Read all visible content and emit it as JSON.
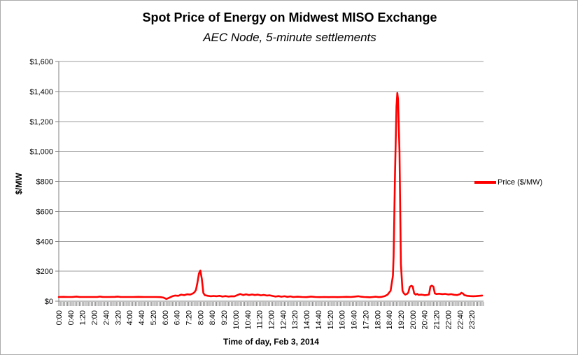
{
  "title": "Spot Price of Energy on Midwest MISO Exchange",
  "subtitle": "AEC Node, 5-minute settlements",
  "legend": {
    "label": "Price ($/MW)",
    "line_color": "#ff0000"
  },
  "colors": {
    "series": "#ff0000",
    "gridline": "#9c9c9c",
    "axis": "#808080",
    "text": "#000000",
    "background": "#ffffff"
  },
  "y_axis": {
    "title": "$/MW",
    "min": 0,
    "max": 1600,
    "step": 200,
    "tick_labels": [
      "$0",
      "$200",
      "$400",
      "$600",
      "$800",
      "$1,000",
      "$1,200",
      "$1,400",
      "$1,600"
    ]
  },
  "x_axis": {
    "title": "Time of day, Feb 3, 2014",
    "minor_tick_minutes": 5,
    "label_interval_minutes": 40,
    "tick_labels": [
      "0:00",
      "0:40",
      "1:20",
      "2:00",
      "2:40",
      "3:20",
      "4:00",
      "4:40",
      "5:20",
      "6:00",
      "6:40",
      "7:20",
      "8:00",
      "8:40",
      "9:20",
      "10:00",
      "10:40",
      "11:20",
      "12:00",
      "12:40",
      "13:20",
      "14:00",
      "14:40",
      "15:20",
      "16:00",
      "16:40",
      "17:20",
      "18:00",
      "18:40",
      "19:20",
      "20:00",
      "20:40",
      "21:20",
      "22:00",
      "22:40",
      "23:20"
    ]
  },
  "chart_data": {
    "type": "line",
    "title": "Spot Price of Energy on Midwest MISO Exchange",
    "subtitle": "AEC Node, 5-minute settlements",
    "xlabel": "Time of day, Feb 3, 2014",
    "ylabel": "$/MW",
    "x_unit": "hours_since_midnight",
    "y_unit": "USD_per_MW",
    "xlim": [
      0,
      24
    ],
    "ylim": [
      0,
      1600
    ],
    "grid": "horizontal",
    "legend_position": "right",
    "series": [
      {
        "name": "Price ($/MW)",
        "color": "#ff0000",
        "points": [
          [
            0.0,
            28
          ],
          [
            0.25,
            29
          ],
          [
            0.5,
            28
          ],
          [
            0.75,
            28
          ],
          [
            1.0,
            31
          ],
          [
            1.17,
            28
          ],
          [
            1.5,
            28
          ],
          [
            1.83,
            28
          ],
          [
            2.17,
            28
          ],
          [
            2.33,
            31
          ],
          [
            2.5,
            28
          ],
          [
            2.83,
            28
          ],
          [
            3.17,
            29
          ],
          [
            3.33,
            31
          ],
          [
            3.5,
            28
          ],
          [
            3.83,
            28
          ],
          [
            4.17,
            28
          ],
          [
            4.5,
            29
          ],
          [
            4.83,
            28
          ],
          [
            5.17,
            28
          ],
          [
            5.5,
            28
          ],
          [
            5.75,
            27
          ],
          [
            5.92,
            24
          ],
          [
            6.08,
            15
          ],
          [
            6.25,
            24
          ],
          [
            6.42,
            33
          ],
          [
            6.58,
            38
          ],
          [
            6.75,
            36
          ],
          [
            6.92,
            44
          ],
          [
            7.08,
            40
          ],
          [
            7.25,
            46
          ],
          [
            7.42,
            44
          ],
          [
            7.58,
            52
          ],
          [
            7.67,
            60
          ],
          [
            7.75,
            75
          ],
          [
            7.83,
            120
          ],
          [
            7.92,
            185
          ],
          [
            8.0,
            205
          ],
          [
            8.08,
            150
          ],
          [
            8.17,
            55
          ],
          [
            8.25,
            40
          ],
          [
            8.42,
            36
          ],
          [
            8.58,
            33
          ],
          [
            8.75,
            35
          ],
          [
            8.92,
            33
          ],
          [
            9.08,
            36
          ],
          [
            9.25,
            31
          ],
          [
            9.42,
            34
          ],
          [
            9.58,
            31
          ],
          [
            9.75,
            33
          ],
          [
            9.92,
            32
          ],
          [
            10.08,
            40
          ],
          [
            10.25,
            48
          ],
          [
            10.42,
            41
          ],
          [
            10.58,
            46
          ],
          [
            10.75,
            41
          ],
          [
            10.92,
            45
          ],
          [
            11.08,
            41
          ],
          [
            11.25,
            44
          ],
          [
            11.42,
            39
          ],
          [
            11.58,
            42
          ],
          [
            11.75,
            38
          ],
          [
            11.92,
            39
          ],
          [
            12.08,
            35
          ],
          [
            12.25,
            31
          ],
          [
            12.42,
            34
          ],
          [
            12.58,
            30
          ],
          [
            12.75,
            33
          ],
          [
            12.92,
            29
          ],
          [
            13.08,
            32
          ],
          [
            13.25,
            28
          ],
          [
            13.5,
            30
          ],
          [
            13.75,
            28
          ],
          [
            14.0,
            27
          ],
          [
            14.25,
            31
          ],
          [
            14.5,
            28
          ],
          [
            14.75,
            27
          ],
          [
            15.0,
            28
          ],
          [
            15.25,
            27
          ],
          [
            15.5,
            28
          ],
          [
            15.75,
            27
          ],
          [
            16.0,
            28
          ],
          [
            16.25,
            29
          ],
          [
            16.5,
            28
          ],
          [
            16.75,
            31
          ],
          [
            16.92,
            33
          ],
          [
            17.08,
            30
          ],
          [
            17.25,
            28
          ],
          [
            17.42,
            27
          ],
          [
            17.58,
            26
          ],
          [
            17.75,
            28
          ],
          [
            17.92,
            30
          ],
          [
            18.08,
            27
          ],
          [
            18.25,
            29
          ],
          [
            18.42,
            34
          ],
          [
            18.58,
            44
          ],
          [
            18.75,
            70
          ],
          [
            18.83,
            130
          ],
          [
            18.88,
            170
          ],
          [
            18.92,
            300
          ],
          [
            19.0,
            850
          ],
          [
            19.08,
            1300
          ],
          [
            19.13,
            1390
          ],
          [
            19.17,
            1350
          ],
          [
            19.25,
            1000
          ],
          [
            19.33,
            250
          ],
          [
            19.42,
            70
          ],
          [
            19.5,
            52
          ],
          [
            19.58,
            44
          ],
          [
            19.67,
            48
          ],
          [
            19.75,
            58
          ],
          [
            19.83,
            95
          ],
          [
            19.92,
            103
          ],
          [
            20.0,
            98
          ],
          [
            20.08,
            52
          ],
          [
            20.17,
            44
          ],
          [
            20.25,
            49
          ],
          [
            20.33,
            42
          ],
          [
            20.5,
            44
          ],
          [
            20.67,
            40
          ],
          [
            20.83,
            42
          ],
          [
            20.92,
            45
          ],
          [
            21.0,
            98
          ],
          [
            21.08,
            104
          ],
          [
            21.17,
            97
          ],
          [
            21.25,
            52
          ],
          [
            21.33,
            48
          ],
          [
            21.5,
            50
          ],
          [
            21.67,
            47
          ],
          [
            21.83,
            49
          ],
          [
            22.0,
            45
          ],
          [
            22.17,
            47
          ],
          [
            22.33,
            43
          ],
          [
            22.5,
            41
          ],
          [
            22.67,
            47
          ],
          [
            22.75,
            56
          ],
          [
            22.83,
            52
          ],
          [
            22.92,
            40
          ],
          [
            23.08,
            36
          ],
          [
            23.25,
            34
          ],
          [
            23.42,
            33
          ],
          [
            23.58,
            34
          ],
          [
            23.75,
            36
          ],
          [
            23.92,
            38
          ]
        ],
        "peak_annotation": "max ~$1,390 at ~19:10; morning spike ~$205 at ~8:00"
      }
    ]
  }
}
